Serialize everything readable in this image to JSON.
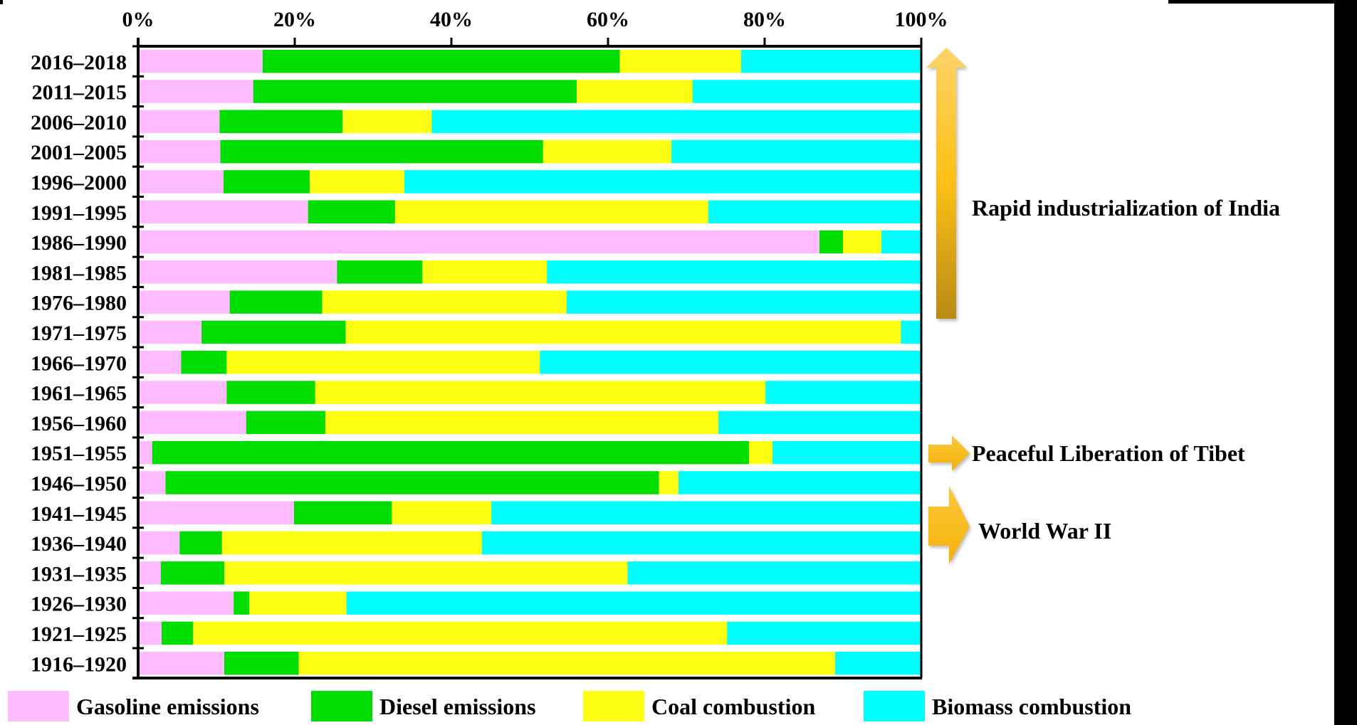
{
  "chart_data": {
    "type": "bar",
    "orientation": "horizontal",
    "stacked": true,
    "normalized": true,
    "title": "",
    "xlabel": "",
    "ylabel": "",
    "xlim": [
      0,
      100
    ],
    "x_ticks": [
      "0%",
      "20%",
      "40%",
      "60%",
      "80%",
      "100%"
    ],
    "x_tick_values": [
      0,
      20,
      40,
      60,
      80,
      100
    ],
    "x_axis_position": "top",
    "grid": false,
    "legend_position": "bottom",
    "categories": [
      "2016–2018",
      "2011–2015",
      "2006–2010",
      "2001–2005",
      "1996–2000",
      "1991–1995",
      "1986–1990",
      "1981–1985",
      "1976–1980",
      "1971–1975",
      "1966–1970",
      "1961–1965",
      "1956–1960",
      "1951–1955",
      "1946–1950",
      "1941–1945",
      "1936–1940",
      "1931–1935",
      "1926–1930",
      "1921–1925",
      "1916–1920"
    ],
    "series": [
      {
        "name": "Gasoline emissions",
        "color": "#ffbbff",
        "values": [
          15.9,
          14.7,
          10.4,
          10.5,
          10.9,
          21.7,
          87.0,
          25.4,
          11.7,
          8.1,
          5.5,
          11.3,
          13.8,
          1.8,
          3.5,
          19.9,
          5.3,
          2.9,
          12.2,
          3.0,
          11.0
        ]
      },
      {
        "name": "Diesel emissions",
        "color": "#00dd00",
        "values": [
          45.6,
          41.3,
          15.7,
          41.2,
          11.0,
          11.1,
          3.0,
          10.9,
          11.8,
          18.4,
          5.8,
          11.3,
          10.1,
          76.2,
          63.0,
          12.5,
          5.4,
          8.1,
          2.0,
          4.0,
          9.5
        ]
      },
      {
        "name": "Coal combustion",
        "color": "#ffff11",
        "values": [
          15.5,
          14.8,
          11.4,
          16.4,
          12.1,
          40.0,
          4.9,
          15.9,
          31.2,
          70.9,
          40.0,
          57.5,
          50.2,
          3.0,
          2.5,
          12.7,
          33.2,
          51.5,
          12.4,
          68.2,
          68.5
        ]
      },
      {
        "name": "Biomass combustion",
        "color": "#00ffff",
        "values": [
          23.0,
          29.2,
          62.5,
          31.9,
          66.0,
          27.2,
          5.1,
          47.8,
          45.3,
          2.6,
          48.7,
          19.9,
          25.9,
          19.0,
          31.0,
          54.9,
          56.1,
          37.5,
          73.4,
          24.8,
          11.0
        ]
      }
    ],
    "annotations": [
      {
        "text": "Rapid industrialization of India",
        "arrow": "up",
        "spans": [
          "1986–1990",
          "2016–2018"
        ]
      },
      {
        "text": "Peaceful Liberation of Tibet",
        "arrow": "right",
        "points_to": "1951–1955"
      },
      {
        "text": "World War II",
        "arrow": "right",
        "spans": [
          "1936–1940",
          "1941–1945"
        ]
      }
    ]
  }
}
